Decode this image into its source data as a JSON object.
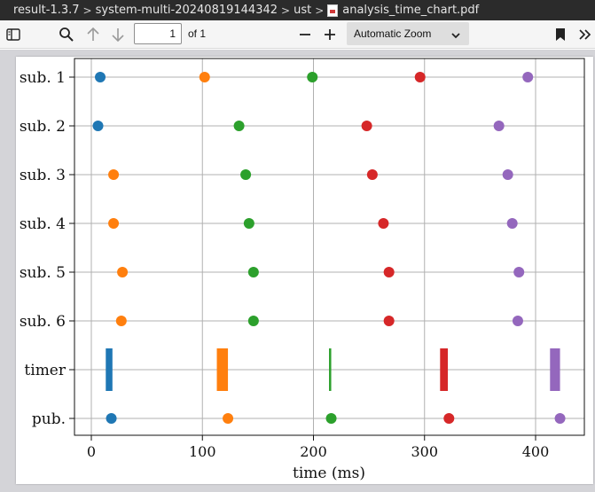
{
  "titlebar": {
    "breadcrumbs": [
      "result-1.3.7",
      "system-multi-20240819144342",
      "ust"
    ],
    "separator": ">",
    "file_name": "analysis_time_chart.pdf"
  },
  "toolbar": {
    "page_value": "1",
    "page_total": "of 1",
    "zoom_label": "Automatic Zoom",
    "icons": [
      "sidebar-toggle-icon",
      "search-icon",
      "arrow-up-icon",
      "arrow-down-icon",
      "minus-icon",
      "plus-icon",
      "chevron-down-icon",
      "bookmark-icon",
      "double-chevron-right-icon"
    ]
  },
  "chart_data": {
    "type": "scatter",
    "title": "",
    "xlabel": "time (ms)",
    "ylabel": "",
    "xlim": [
      -15,
      442
    ],
    "xticks": [
      0,
      100,
      200,
      300,
      400
    ],
    "grid": true,
    "categories": [
      "sub. 1",
      "sub. 2",
      "sub. 3",
      "sub. 4",
      "sub. 5",
      "sub. 6",
      "timer",
      "pub."
    ],
    "colors": [
      "#1f77b4",
      "#ff7f0e",
      "#2ca02c",
      "#d62728",
      "#9467bd"
    ],
    "series": [
      {
        "points": [
          [
            8,
            "sub. 1"
          ],
          [
            6,
            "sub. 2"
          ],
          [
            18,
            "pub."
          ]
        ]
      },
      {
        "points": [
          [
            102,
            "sub. 1"
          ],
          [
            20,
            "sub. 3"
          ],
          [
            20,
            "sub. 4"
          ],
          [
            28,
            "sub. 5"
          ],
          [
            27,
            "sub. 6"
          ],
          [
            123,
            "pub."
          ]
        ]
      },
      {
        "points": [
          [
            199,
            "sub. 1"
          ],
          [
            133,
            "sub. 2"
          ],
          [
            139,
            "sub. 3"
          ],
          [
            142,
            "sub. 4"
          ],
          [
            146,
            "sub. 5"
          ],
          [
            146,
            "sub. 6"
          ],
          [
            216,
            "pub."
          ]
        ]
      },
      {
        "points": [
          [
            296,
            "sub. 1"
          ],
          [
            248,
            "sub. 2"
          ],
          [
            253,
            "sub. 3"
          ],
          [
            263,
            "sub. 4"
          ],
          [
            268,
            "sub. 5"
          ],
          [
            268,
            "sub. 6"
          ],
          [
            322,
            "pub."
          ]
        ]
      },
      {
        "points": [
          [
            393,
            "sub. 1"
          ],
          [
            367,
            "sub. 2"
          ],
          [
            375,
            "sub. 3"
          ],
          [
            379,
            "sub. 4"
          ],
          [
            385,
            "sub. 5"
          ],
          [
            384,
            "sub. 6"
          ],
          [
            422,
            "pub."
          ]
        ]
      }
    ],
    "timer_bars": [
      {
        "start": 13,
        "end": 19
      },
      {
        "start": 113,
        "end": 123
      },
      {
        "start": 214,
        "end": 216
      },
      {
        "start": 314,
        "end": 321
      },
      {
        "start": 413,
        "end": 422
      }
    ]
  }
}
